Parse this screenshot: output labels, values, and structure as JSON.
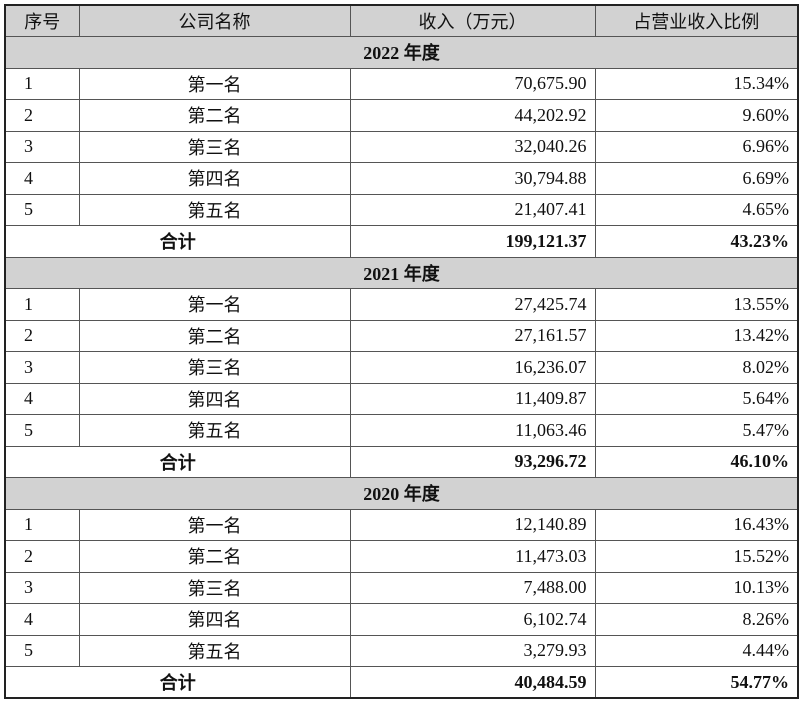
{
  "headers": [
    "序号",
    "公司名称",
    "收入（万元）",
    "占营业收入比例"
  ],
  "sections": [
    {
      "title": "2022 年度",
      "rows": [
        {
          "no": "1",
          "name": "第一名",
          "revenue": "70,675.90",
          "ratio": "15.34%"
        },
        {
          "no": "2",
          "name": "第二名",
          "revenue": "44,202.92",
          "ratio": "9.60%"
        },
        {
          "no": "3",
          "name": "第三名",
          "revenue": "32,040.26",
          "ratio": "6.96%"
        },
        {
          "no": "4",
          "name": "第四名",
          "revenue": "30,794.88",
          "ratio": "6.69%"
        },
        {
          "no": "5",
          "name": "第五名",
          "revenue": "21,407.41",
          "ratio": "4.65%"
        }
      ],
      "total": {
        "label": "合计",
        "revenue": "199,121.37",
        "ratio": "43.23%"
      }
    },
    {
      "title": "2021 年度",
      "rows": [
        {
          "no": "1",
          "name": "第一名",
          "revenue": "27,425.74",
          "ratio": "13.55%"
        },
        {
          "no": "2",
          "name": "第二名",
          "revenue": "27,161.57",
          "ratio": "13.42%"
        },
        {
          "no": "3",
          "name": "第三名",
          "revenue": "16,236.07",
          "ratio": "8.02%"
        },
        {
          "no": "4",
          "name": "第四名",
          "revenue": "11,409.87",
          "ratio": "5.64%"
        },
        {
          "no": "5",
          "name": "第五名",
          "revenue": "11,063.46",
          "ratio": "5.47%"
        }
      ],
      "total": {
        "label": "合计",
        "revenue": "93,296.72",
        "ratio": "46.10%"
      }
    },
    {
      "title": "2020 年度",
      "rows": [
        {
          "no": "1",
          "name": "第一名",
          "revenue": "12,140.89",
          "ratio": "16.43%"
        },
        {
          "no": "2",
          "name": "第二名",
          "revenue": "11,473.03",
          "ratio": "15.52%"
        },
        {
          "no": "3",
          "name": "第三名",
          "revenue": "7,488.00",
          "ratio": "10.13%"
        },
        {
          "no": "4",
          "name": "第四名",
          "revenue": "6,102.74",
          "ratio": "8.26%"
        },
        {
          "no": "5",
          "name": "第五名",
          "revenue": "3,279.93",
          "ratio": "4.44%"
        }
      ],
      "total": {
        "label": "合计",
        "revenue": "40,484.59",
        "ratio": "54.77%"
      }
    }
  ]
}
